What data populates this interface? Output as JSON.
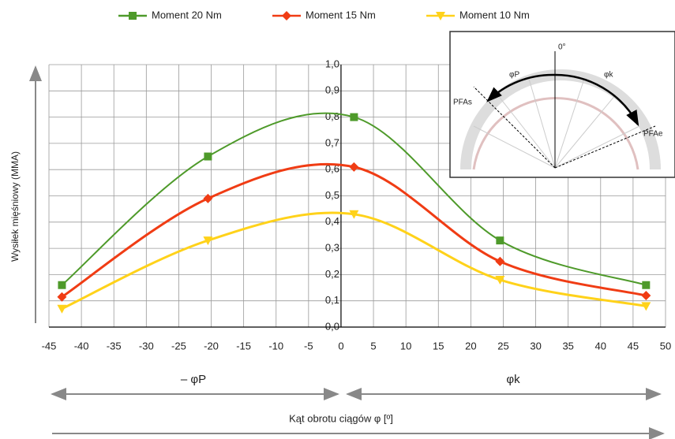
{
  "chart_data": {
    "type": "line",
    "x_label": "Kąt obrotu ciągów φ [º]",
    "y_label": "Wysiłek mięśniowy (MMA)",
    "series": [
      {
        "name": "Moment 20 Nm",
        "color": "#4e9a2a",
        "marker": "square",
        "x": [
          -43,
          -20.5,
          2,
          24.5,
          47
        ],
        "values": [
          0.16,
          0.65,
          0.8,
          0.33,
          0.16
        ]
      },
      {
        "name": "Moment 15 Nm",
        "color": "#f03c14",
        "marker": "diamond",
        "x": [
          -43,
          -20.5,
          2,
          24.5,
          47
        ],
        "values": [
          0.115,
          0.49,
          0.61,
          0.25,
          0.12
        ]
      },
      {
        "name": "Moment 10 Nm",
        "color": "#ffd21a",
        "marker": "triangle-down",
        "x": [
          -43,
          -20.5,
          2,
          24.5,
          47
        ],
        "values": [
          0.07,
          0.33,
          0.43,
          0.18,
          0.08
        ]
      }
    ],
    "xlim": [
      -45,
      50
    ],
    "xticks": [
      -45,
      -40,
      -35,
      -30,
      -25,
      -20,
      -15,
      -10,
      -5,
      0,
      5,
      10,
      15,
      20,
      25,
      30,
      35,
      40,
      45,
      50
    ],
    "ylim": [
      0,
      1
    ],
    "yticks": [
      {
        "value": 0,
        "label": "0,0"
      },
      {
        "value": 0.1,
        "label": "0,1"
      },
      {
        "value": 0.2,
        "label": "0,2"
      },
      {
        "value": 0.3,
        "label": "0,3"
      },
      {
        "value": 0.4,
        "label": "0,4"
      },
      {
        "value": 0.5,
        "label": "0,5"
      },
      {
        "value": 0.6,
        "label": "0,6"
      },
      {
        "value": 0.7,
        "label": "0,7"
      },
      {
        "value": 0.8,
        "label": "0,8"
      },
      {
        "value": 0.9,
        "label": "0,9"
      },
      {
        "value": 1,
        "label": "1,0"
      }
    ],
    "grid": true,
    "legend": "top",
    "annotations": [
      "– φP",
      "φk",
      "0°",
      "φP",
      "φk",
      "PFAs",
      "PFAe"
    ]
  }
}
